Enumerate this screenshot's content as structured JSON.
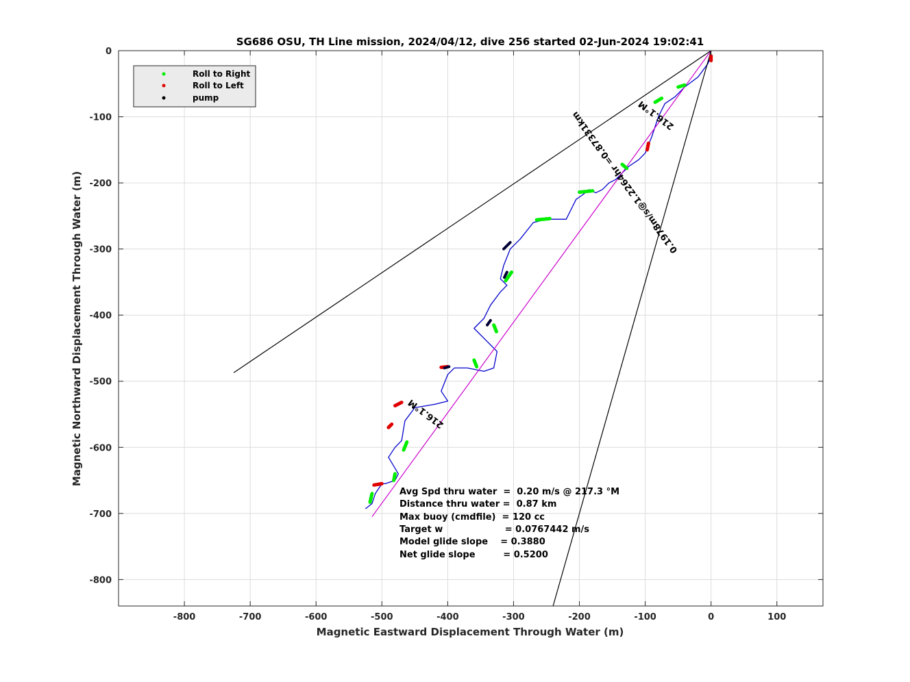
{
  "chart_data": {
    "type": "line",
    "title": "SG686 OSU, TH Line mission, 2024/04/12, dive 256 started 02-Jun-2024 19:02:41",
    "xlabel": "Magnetic Eastward Displacement Through Water (m)",
    "ylabel": "Magnetic Northward Displacement Through Water (m)",
    "xlim": [
      -900,
      170
    ],
    "ylim": [
      -840,
      0
    ],
    "xticks": [
      -800,
      -700,
      -600,
      -500,
      -400,
      -300,
      -200,
      -100,
      0,
      100
    ],
    "yticks": [
      0,
      -100,
      -200,
      -300,
      -400,
      -500,
      -600,
      -700,
      -800
    ],
    "grid": true,
    "legend_position": "top-left",
    "legend": [
      {
        "label": "Roll to Right",
        "color": "#00ee00"
      },
      {
        "label": "Roll to Left",
        "color": "#e00000"
      },
      {
        "label": "pump",
        "color": "#000000"
      }
    ],
    "series": [
      {
        "kind": "track",
        "color": "#0000cc",
        "x": [
          0,
          -5,
          -20,
          -40,
          -55,
          -70,
          -80,
          -90,
          -100,
          -110,
          -125,
          -135,
          -145,
          -155,
          -165,
          -175,
          -185,
          -195,
          -205,
          -215,
          -220,
          -235,
          -250,
          -270,
          -290,
          -305,
          -315,
          -320,
          -310,
          -320,
          -335,
          -345,
          -360,
          -340,
          -325,
          -330,
          -345,
          -370,
          -390,
          -400,
          -410,
          -400,
          -420,
          -450,
          -465,
          -470,
          -480,
          -490,
          -475,
          -480,
          -495,
          -500,
          -510,
          -515,
          -525
        ],
        "y": [
          -8,
          -20,
          -40,
          -55,
          -70,
          -80,
          -100,
          -130,
          -155,
          -165,
          -175,
          -185,
          -195,
          -200,
          -210,
          -215,
          -210,
          -218,
          -225,
          -245,
          -255,
          -255,
          -255,
          -260,
          -285,
          -300,
          -325,
          -345,
          -355,
          -365,
          -385,
          -405,
          -420,
          -440,
          -455,
          -480,
          -485,
          -480,
          -480,
          -490,
          -515,
          -530,
          -535,
          -540,
          -560,
          -590,
          -600,
          -615,
          -640,
          -650,
          -655,
          -655,
          -670,
          -685,
          -693
        ]
      },
      {
        "kind": "desired course",
        "color": "#cc00cc",
        "x": [
          0,
          -515
        ],
        "y": [
          0,
          -705
        ]
      },
      {
        "kind": "wedge edge",
        "color": "#000000",
        "x": [
          0,
          -725
        ],
        "y": [
          0,
          -487
        ]
      },
      {
        "kind": "wedge edge",
        "color": "#000000",
        "x": [
          0,
          -240
        ],
        "y": [
          0,
          -840
        ]
      }
    ],
    "roll_right_segments": [
      [
        -40,
        -52,
        -50,
        -55
      ],
      [
        -75,
        -72,
        -85,
        -78
      ],
      [
        -128,
        -178,
        -135,
        -172
      ],
      [
        -180,
        -212,
        -200,
        -214
      ],
      [
        -245,
        -254,
        -265,
        -256
      ],
      [
        -303,
        -335,
        -312,
        -348
      ],
      [
        -330,
        -415,
        -326,
        -425
      ],
      [
        -360,
        -468,
        -356,
        -478
      ],
      [
        -462,
        -592,
        -467,
        -604
      ],
      [
        -480,
        -640,
        -482,
        -650
      ],
      [
        -515,
        -670,
        -518,
        -683
      ]
    ],
    "roll_left_segments": [
      [
        0,
        -8,
        0,
        -15
      ],
      [
        -95,
        -140,
        -97,
        -150
      ],
      [
        -400,
        -478,
        -410,
        -479
      ],
      [
        -470,
        -532,
        -480,
        -537
      ],
      [
        -485,
        -565,
        -490,
        -570
      ],
      [
        -500,
        -655,
        -512,
        -657
      ]
    ],
    "pump_segments": [
      [
        -305,
        -290,
        -315,
        -300
      ],
      [
        -310,
        -335,
        -314,
        -343
      ],
      [
        -335,
        -408,
        -340,
        -415
      ],
      [
        -398,
        -478,
        -405,
        -480
      ]
    ],
    "annotations": {
      "heading_upper": "216.1°M",
      "heading_lower": "216.1°M",
      "course_label": "0.1978m/s@1.2264hr =0.87331km",
      "stats": [
        "Avg Spd thru water  =  0.20 m/s @ 217.3 °M",
        "Distance thru water =  0.87 km",
        "Max buoy (cmdfile)  = 120 cc",
        "Target w                    = 0.0767442 m/s",
        "Model glide slope    = 0.3880",
        "Net glide slope         = 0.5200"
      ]
    }
  }
}
